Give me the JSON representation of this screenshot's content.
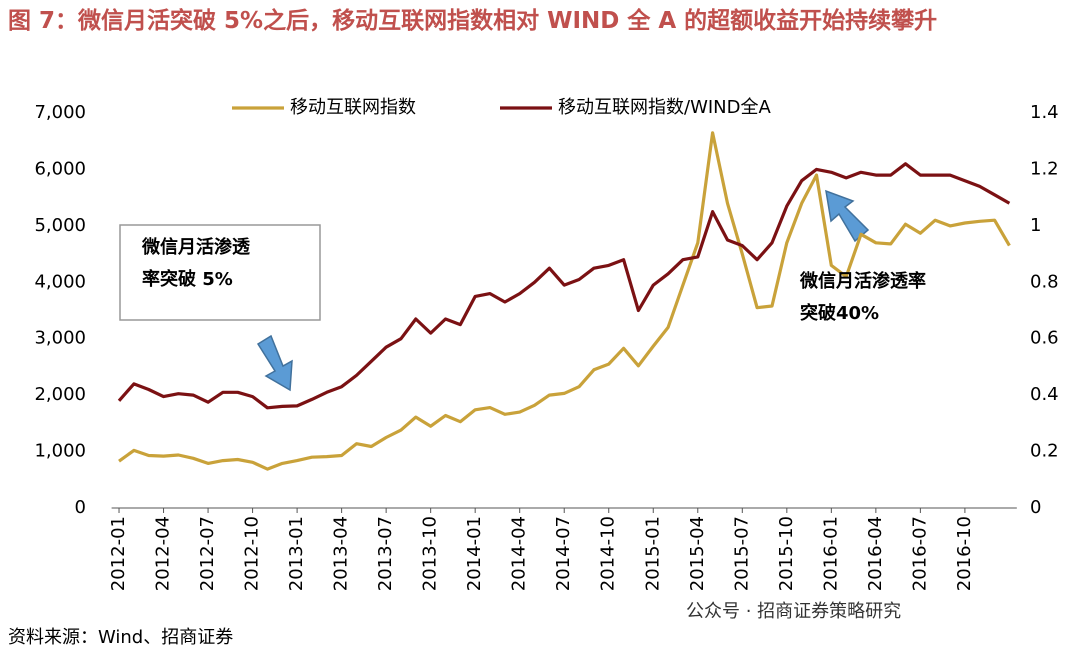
{
  "chart_data": {
    "type": "line",
    "title": "图 7：微信月活突破 5%之后，移动互联网指数相对 WIND 全 A 的超额收益开始持续攀升",
    "source": "资料来源：Wind、招商证券",
    "watermark": "公众号 · 招商证券策略研究",
    "categories": [
      "2012-01",
      null,
      null,
      "2012-04",
      null,
      null,
      "2012-07",
      null,
      null,
      "2012-10",
      null,
      null,
      "2013-01",
      null,
      null,
      "2013-04",
      null,
      null,
      "2013-07",
      null,
      null,
      "2013-10",
      null,
      null,
      "2014-01",
      null,
      null,
      "2014-04",
      null,
      null,
      "2014-07",
      null,
      null,
      "2014-10",
      null,
      null,
      "2015-01",
      null,
      null,
      "2015-04",
      null,
      null,
      "2015-07",
      null,
      null,
      "2015-10",
      null,
      null,
      "2016-01",
      null,
      null,
      "2016-04",
      null,
      null,
      "2016-07",
      null,
      null,
      "2016-10",
      null,
      null,
      null
    ],
    "series": [
      {
        "name": "移动互联网指数",
        "color": "#c9a23a",
        "values": [
          830,
          1020,
          930,
          920,
          940,
          880,
          790,
          840,
          860,
          810,
          690,
          790,
          840,
          900,
          910,
          930,
          1140,
          1090,
          1250,
          1380,
          1610,
          1450,
          1640,
          1530,
          1740,
          1780,
          1660,
          1700,
          1820,
          2000,
          2030,
          2150,
          2450,
          2550,
          2830,
          2520,
          2870,
          3200,
          3950,
          4700,
          6650,
          5400,
          4500,
          3550,
          3580,
          4700,
          5400,
          5900,
          4300,
          4100,
          4850,
          4700,
          4680,
          5030,
          4870,
          5100,
          5000,
          5050,
          5080,
          5100,
          4650
        ]
      },
      {
        "name": "移动互联网指数/WIND全A",
        "color": "#7b1113",
        "axis": "y2",
        "values": [
          0.38,
          0.44,
          0.42,
          0.395,
          0.405,
          0.4,
          0.375,
          0.41,
          0.41,
          0.395,
          0.355,
          0.36,
          0.362,
          0.385,
          0.41,
          0.43,
          0.47,
          0.52,
          0.57,
          0.6,
          0.67,
          0.62,
          0.67,
          0.65,
          0.75,
          0.76,
          0.73,
          0.76,
          0.8,
          0.85,
          0.79,
          0.81,
          0.85,
          0.86,
          0.88,
          0.7,
          0.79,
          0.83,
          0.88,
          0.89,
          1.05,
          0.95,
          0.93,
          0.88,
          0.94,
          1.07,
          1.16,
          1.2,
          1.19,
          1.17,
          1.19,
          1.18,
          1.18,
          1.22,
          1.18,
          1.18,
          1.18,
          1.16,
          1.14,
          1.11,
          1.08
        ]
      }
    ],
    "ylim": [
      0,
      7000
    ],
    "yticks": [
      0,
      {
        "value": 1000,
        "label": "1,000"
      },
      {
        "value": 2000,
        "label": "2,000"
      },
      {
        "value": 3000,
        "label": "3,000"
      },
      {
        "value": 4000,
        "label": "4,000"
      },
      {
        "value": 5000,
        "label": "5,000"
      },
      {
        "value": 6000,
        "label": "6,000"
      },
      {
        "value": 7000,
        "label": "7,000"
      }
    ],
    "y2lim": [
      0,
      1.4
    ],
    "y2ticks": [
      0,
      0.2,
      0.4,
      0.6,
      0.8,
      1,
      1.2,
      1.4
    ],
    "legend": "top",
    "annotations": [
      {
        "lines": [
          "微信月活渗透",
          "率突破 5%"
        ]
      },
      {
        "lines": [
          "微信月活渗透率",
          "突破40%"
        ]
      }
    ]
  }
}
